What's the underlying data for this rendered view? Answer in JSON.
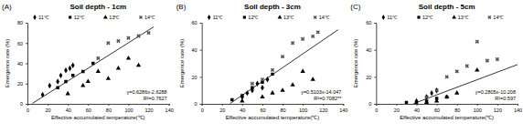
{
  "chart_data": [
    {
      "type": "scatter",
      "panel": "(A)",
      "title": "Soil depth - 1cm",
      "x_label": "Effective accumulated temperature(℃)",
      "y_label": "Emergence rate (%)",
      "xlim": [
        0,
        140
      ],
      "xticks": [
        0,
        20,
        40,
        60,
        80,
        100,
        120,
        140
      ],
      "ylim": [
        0,
        80
      ],
      "yticks": [
        0,
        20,
        40,
        60,
        80
      ],
      "series": [
        {
          "name": "11℃",
          "marker": "diamond",
          "color": "#000000",
          "x": [
            15,
            22,
            30,
            33,
            38,
            42,
            45
          ],
          "values": [
            9,
            18,
            22,
            28,
            33,
            35,
            38
          ]
        },
        {
          "name": "12℃",
          "marker": "square",
          "color": "#000000",
          "x": [
            30,
            38,
            45,
            55,
            65
          ],
          "values": [
            16,
            22,
            28,
            32,
            40
          ]
        },
        {
          "name": "13℃",
          "marker": "triangle",
          "color": "#000000",
          "x": [
            40,
            55,
            60,
            70,
            80,
            90,
            100,
            110
          ],
          "values": [
            10,
            18,
            22,
            32,
            25,
            35,
            45,
            38
          ]
        },
        {
          "name": "14℃",
          "marker": "x",
          "color": "#555555",
          "x": [
            70,
            80,
            90,
            100,
            110,
            120
          ],
          "values": [
            45,
            60,
            62,
            65,
            67,
            70
          ]
        }
      ],
      "fit": {
        "slope": 0.6286,
        "intercept": -2.6288,
        "x_range": [
          5,
          125
        ],
        "equation": "y=0.6286x-2.6288",
        "r2": "R²=0.7627"
      }
    },
    {
      "type": "scatter",
      "panel": "(B)",
      "title": "Soil depth - 3cm",
      "x_label": "Effective accumulated temperature(℃)",
      "y_label": "Emergence rate (%)",
      "xlim": [
        0,
        140
      ],
      "xticks": [
        0,
        20,
        40,
        60,
        80,
        100,
        120,
        140
      ],
      "ylim": [
        0,
        60
      ],
      "yticks": [
        0,
        20,
        40,
        60
      ],
      "series": [
        {
          "name": "11℃",
          "marker": "diamond",
          "color": "#000000",
          "x": [
            40,
            45,
            50,
            55,
            60,
            65
          ],
          "values": [
            5,
            8,
            10,
            15,
            12,
            18
          ]
        },
        {
          "name": "12℃",
          "marker": "square",
          "color": "#000000",
          "x": [
            30,
            40,
            50,
            60,
            70
          ],
          "values": [
            3,
            6,
            12,
            16,
            22
          ]
        },
        {
          "name": "13℃",
          "marker": "triangle",
          "color": "#000000",
          "x": [
            40,
            60,
            70,
            80,
            90,
            100,
            110
          ],
          "values": [
            2,
            5,
            8,
            10,
            14,
            24,
            18
          ]
        },
        {
          "name": "14℃",
          "marker": "x",
          "color": "#555555",
          "x": [
            50,
            60,
            70,
            80,
            90,
            100,
            110,
            115
          ],
          "values": [
            15,
            18,
            25,
            35,
            45,
            48,
            50,
            53
          ]
        }
      ],
      "fit": {
        "slope": 0.5103,
        "intercept": -14.047,
        "x_range": [
          28,
          135
        ],
        "equation": "y=0.5103x-14.047",
        "r2": "R²=0.7082**"
      }
    },
    {
      "type": "scatter",
      "panel": "(C)",
      "title": "Soil depth - 5cm",
      "x_label": "Effective accumulated temperature(℃)",
      "y_label": "Emergence rate (%)",
      "xlim": [
        0,
        140
      ],
      "xticks": [
        0,
        20,
        40,
        60,
        80,
        100,
        120,
        140
      ],
      "ylim": [
        0,
        60
      ],
      "yticks": [
        0,
        20,
        40,
        60
      ],
      "series": [
        {
          "name": "11℃",
          "marker": "diamond",
          "color": "#000000",
          "x": [
            40,
            50,
            55,
            60
          ],
          "values": [
            2,
            5,
            8,
            10
          ]
        },
        {
          "name": "12℃",
          "marker": "square",
          "color": "#000000",
          "x": [
            30,
            40,
            50,
            60,
            70
          ],
          "values": [
            1,
            1,
            2,
            4,
            5
          ]
        },
        {
          "name": "13℃",
          "marker": "triangle",
          "color": "#000000",
          "x": [
            40,
            50,
            60,
            70,
            80,
            100
          ],
          "values": [
            0,
            1,
            2,
            5,
            8,
            25
          ]
        },
        {
          "name": "14℃",
          "marker": "x",
          "color": "#555555",
          "x": [
            50,
            60,
            70,
            80,
            90,
            100,
            110,
            120
          ],
          "values": [
            5,
            10,
            20,
            24,
            28,
            46,
            32,
            33
          ]
        }
      ],
      "fit": {
        "slope": 0.2805,
        "intercept": -10.208,
        "x_range": [
          37,
          140
        ],
        "equation": "y=0.2805x-10.208",
        "r2": "R²=0.597"
      }
    }
  ]
}
